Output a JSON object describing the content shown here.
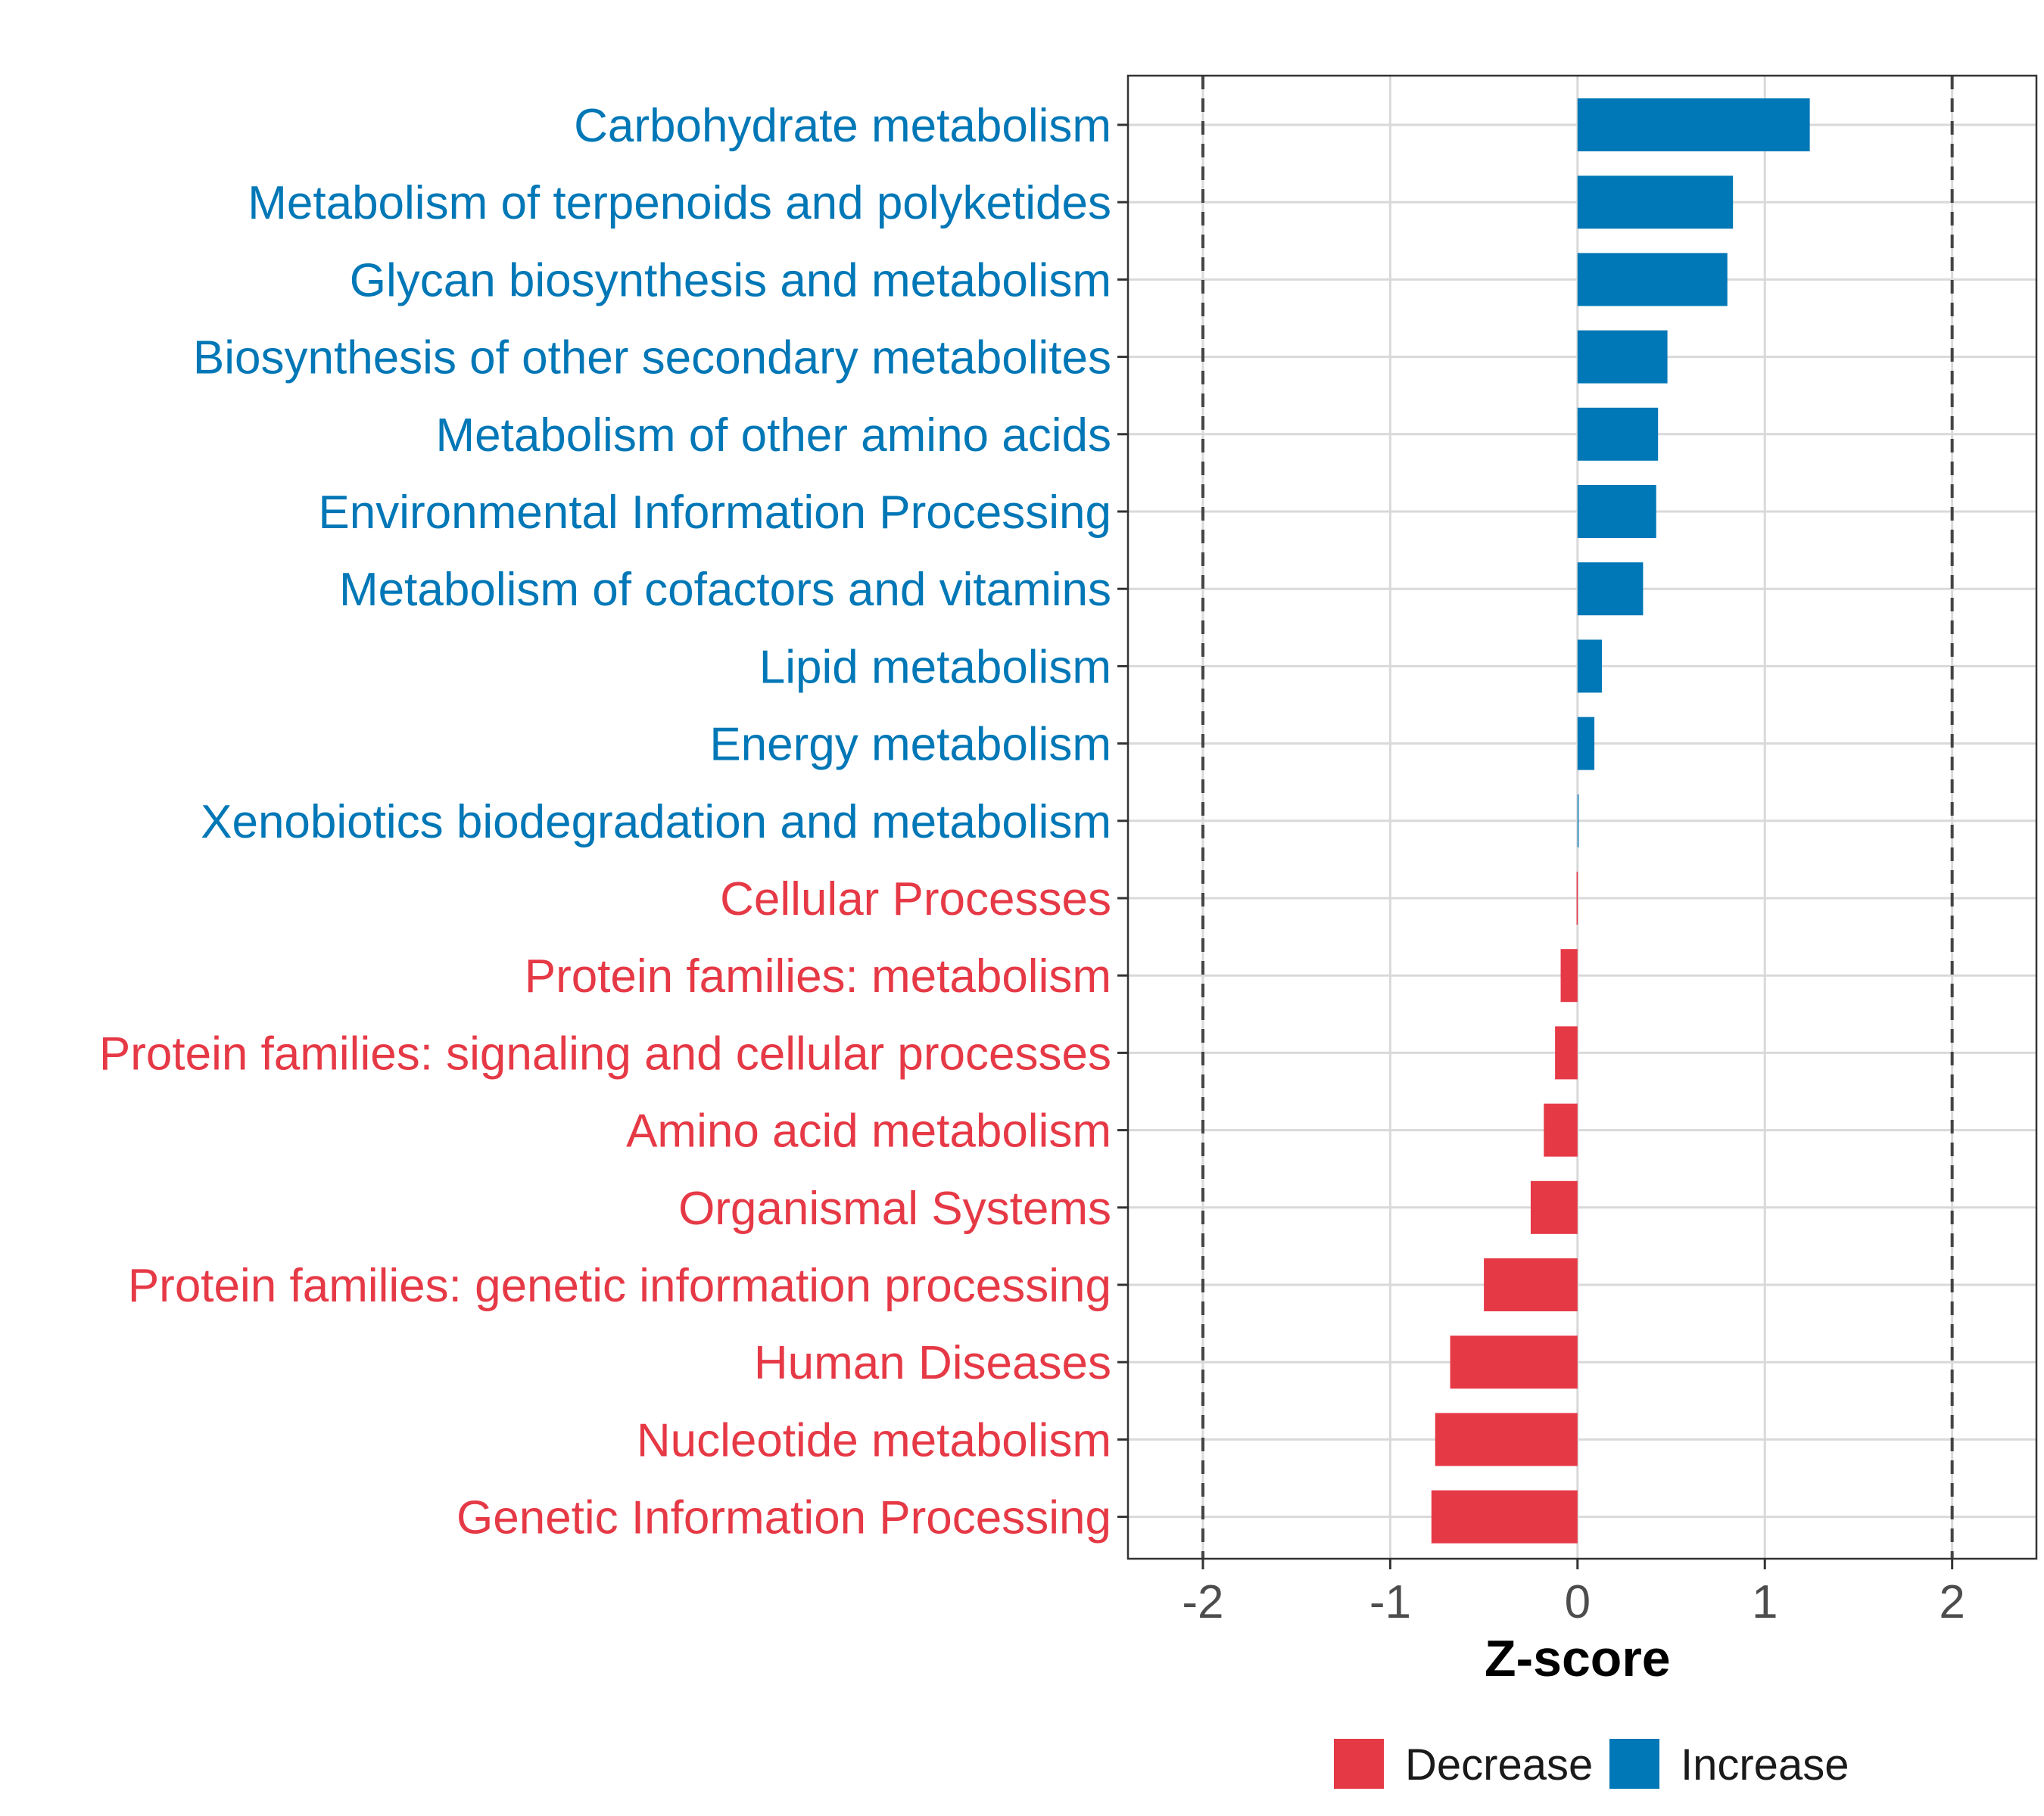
{
  "chart_data": {
    "type": "bar",
    "orientation": "horizontal",
    "xlabel": "Z-score",
    "xlim": [
      -2.4,
      2.45
    ],
    "xticks": [
      -2,
      -1,
      0,
      1,
      2
    ],
    "xtick_labels": [
      "-2",
      "-1",
      "0",
      "1",
      "2"
    ],
    "reference_lines": [
      -2,
      2
    ],
    "grid": true,
    "categories": [
      "Carbohydrate metabolism",
      "Metabolism of terpenoids and polyketides",
      "Glycan biosynthesis and metabolism",
      "Biosynthesis of other secondary metabolites",
      "Metabolism of other amino acids",
      "Environmental Information Processing",
      "Metabolism of cofactors and vitamins",
      "Lipid metabolism",
      "Energy metabolism",
      "Xenobiotics biodegradation and metabolism",
      "Cellular Processes",
      "Protein families: metabolism",
      "Protein families: signaling and cellular processes",
      "Amino acid metabolism",
      "Organismal Systems",
      "Protein families: genetic information processing",
      "Human Diseases",
      "Nucleotide metabolism",
      "Genetic Information Processing"
    ],
    "values": [
      1.24,
      0.83,
      0.8,
      0.48,
      0.43,
      0.42,
      0.35,
      0.13,
      0.09,
      0.005,
      -0.005,
      -0.09,
      -0.12,
      -0.18,
      -0.25,
      -0.5,
      -0.68,
      -0.76,
      -0.78
    ],
    "groups": [
      "Increase",
      "Increase",
      "Increase",
      "Increase",
      "Increase",
      "Increase",
      "Increase",
      "Increase",
      "Increase",
      "Increase",
      "Decrease",
      "Decrease",
      "Decrease",
      "Decrease",
      "Decrease",
      "Decrease",
      "Decrease",
      "Decrease",
      "Decrease"
    ],
    "legend": {
      "position": "bottom",
      "items": [
        {
          "label": "Decrease",
          "color": "#E63946"
        },
        {
          "label": "Increase",
          "color": "#0077B6"
        }
      ]
    },
    "colors": {
      "Decrease": "#E63946",
      "Increase": "#0077B6"
    }
  }
}
